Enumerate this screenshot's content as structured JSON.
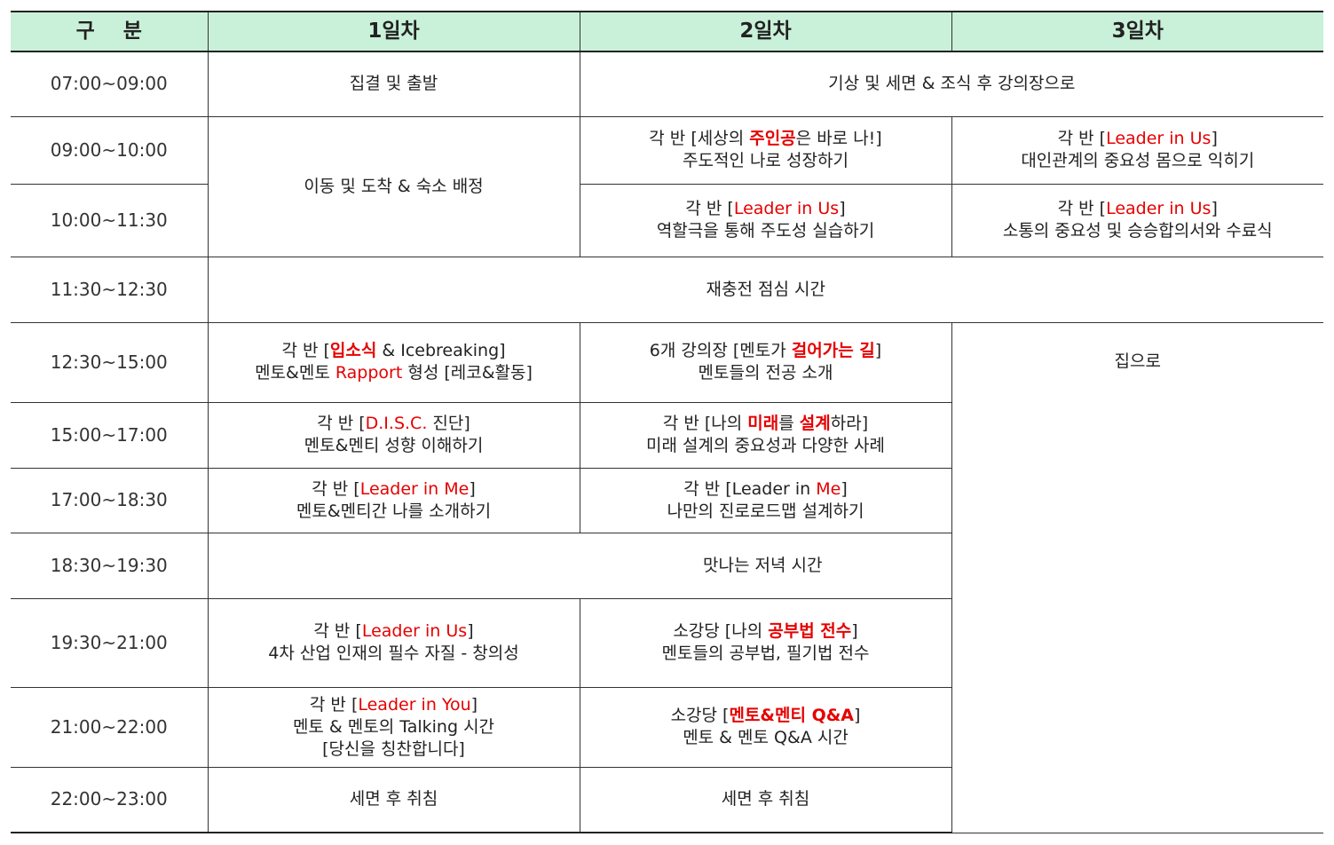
{
  "header": {
    "col0": "구    분",
    "col1": "1일차",
    "col2": "2일차",
    "col3": "3일차"
  },
  "times": [
    "07:00~09:00",
    "09:00~10:00",
    "10:00~11:30",
    "11:30~12:30",
    "12:30~15:00",
    "15:00~17:00",
    "17:00~18:30",
    "18:30~19:30",
    "19:30~21:00",
    "21:00~22:00",
    "22:00~23:00"
  ],
  "cells": {
    "r1_d1": "집결 및 출발",
    "r1_d23": "기상 및 세면 & 조식 후 강의장으로",
    "r2_d1": "이동 및 도착 & 숙소 배정",
    "r2_d2": {
      "p1": "각 반 [세상의 ",
      "hl": "주인공",
      "p2": "은 바로 나!]",
      "line2": "주도적인 나로 성장하기"
    },
    "r2_d3": {
      "p1": "각 반 [",
      "hl": "Leader in Us",
      "p2": "]",
      "line2": "대인관계의 중요성 몸으로 익히기"
    },
    "r3_d2": {
      "p1": "각 반 [",
      "hl": "Leader in Us",
      "p2": "]",
      "line2": "역할극을 통해 주도성 실습하기"
    },
    "r3_d3": {
      "p1": "각 반 [",
      "hl": "Leader in Us",
      "p2": "]",
      "line2": "소통의 중요성 및 승승합의서와 수료식"
    },
    "r4_all": "재충전 점심 시간",
    "r5_d1": {
      "p1": "각 반 [",
      "hl": "입소식",
      "p2": " & Icebreaking]",
      "l2a": "멘토&멘토 ",
      "l2hl": "Rapport",
      "l2b": " 형성 [레코&활동]"
    },
    "r5_d2": {
      "p1": "6개 강의장 [멘토가 ",
      "hl": "걸어가는 길",
      "p2": "]",
      "line2": "멘토들의 전공 소개"
    },
    "r5_d3": "집으로",
    "r6_d1": {
      "p1": "각 반 [",
      "hl": "D.I.S.C.",
      "p2": " 진단]",
      "line2": "멘토&멘티 성향 이해하기"
    },
    "r6_d2": {
      "p1": "각 반 [나의 ",
      "hl": "미래",
      "p2": "를 ",
      "hl2": "설계",
      "p3": "하라]",
      "line2": "미래 설계의 중요성과 다양한 사례"
    },
    "r7_d1": {
      "p1": "각 반 [",
      "hl": "Leader in Me",
      "p2": "]",
      "line2": "멘토&멘티간 나를 소개하기"
    },
    "r7_d2": {
      "p1": "각 반 [Leader in ",
      "hl": "Me",
      "p2": "]",
      "line2": "나만의 진로로드맵 설계하기"
    },
    "r8_all": "맛나는 저녁 시간",
    "r9_d1": {
      "p1": "각 반 [",
      "hl": "Leader in Us",
      "p2": "]",
      "line2": "4차 산업 인재의 필수 자질 - 창의성"
    },
    "r9_d2": {
      "p1": "소강당 [나의 ",
      "hl": "공부법 전수",
      "p2": "]",
      "line2": "멘토들의 공부법, 필기법 전수"
    },
    "r10_d1": {
      "p1": "각 반 [",
      "hl": "Leader in You",
      "p2": "]",
      "line2": "멘토 & 멘토의 Talking 시간",
      "line3": "[당신을 칭찬합니다]"
    },
    "r10_d2": {
      "p1": "소강당 [",
      "hl": "멘토&멘티 Q&A",
      "p2": "]",
      "line2": "멘토 & 멘토 Q&A 시간"
    },
    "r11_d1": "세면 후 취침",
    "r11_d2": "세면 후 취침"
  },
  "colors": {
    "header_bg": "#c9f1d9",
    "highlight": "#e60000"
  }
}
